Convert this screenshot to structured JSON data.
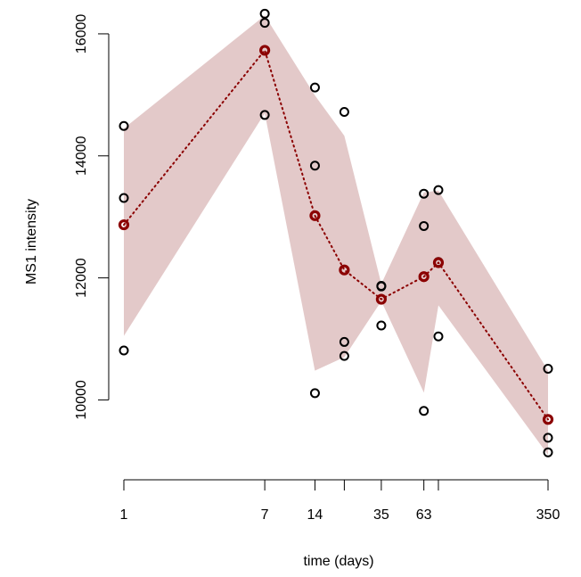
{
  "chart_data": {
    "type": "line",
    "title": "",
    "xlabel": "time (days)",
    "ylabel": "MS1 intensity",
    "x_scale": "log",
    "xlim": [
      1,
      350
    ],
    "ylim": [
      9100,
      16350
    ],
    "grid": false,
    "x_ticks": [
      1,
      7,
      14,
      35,
      63,
      350
    ],
    "x_tick_labels": [
      "1",
      "7",
      "14",
      "35",
      "63",
      "350"
    ],
    "x_minor_ticks": [
      21,
      77
    ],
    "y_ticks": [
      10000,
      12000,
      14000,
      16000
    ],
    "y_tick_labels": [
      "10000",
      "12000",
      "14000",
      "16000"
    ],
    "colors": {
      "band": "#e3c9c9",
      "mean": "#8b0000",
      "points": "#000000"
    },
    "band": {
      "x": [
        1,
        7,
        14,
        21,
        35,
        63,
        77,
        350
      ],
      "lower": [
        11050,
        14700,
        10480,
        10700,
        11620,
        10120,
        11550,
        9100
      ],
      "upper": [
        14450,
        16300,
        14990,
        14330,
        11900,
        13400,
        13430,
        10480
      ]
    },
    "mean": {
      "x": [
        1,
        7,
        14,
        21,
        35,
        63,
        77,
        350
      ],
      "y": [
        12870,
        15730,
        13020,
        12130,
        11650,
        12020,
        12250,
        9680
      ]
    },
    "replicates": [
      {
        "x": 1,
        "y": [
          14490,
          13310,
          10810
        ]
      },
      {
        "x": 7,
        "y": [
          16330,
          16180,
          14670
        ]
      },
      {
        "x": 14,
        "y": [
          15120,
          13840,
          10110
        ]
      },
      {
        "x": 21,
        "y": [
          14720,
          10950,
          10720
        ]
      },
      {
        "x": 35,
        "y": [
          11870,
          11860,
          11220
        ]
      },
      {
        "x": 63,
        "y": [
          13380,
          12850,
          9820
        ]
      },
      {
        "x": 77,
        "y": [
          13440,
          12260,
          11040
        ]
      },
      {
        "x": 350,
        "y": [
          10510,
          9380,
          9140
        ]
      }
    ]
  }
}
